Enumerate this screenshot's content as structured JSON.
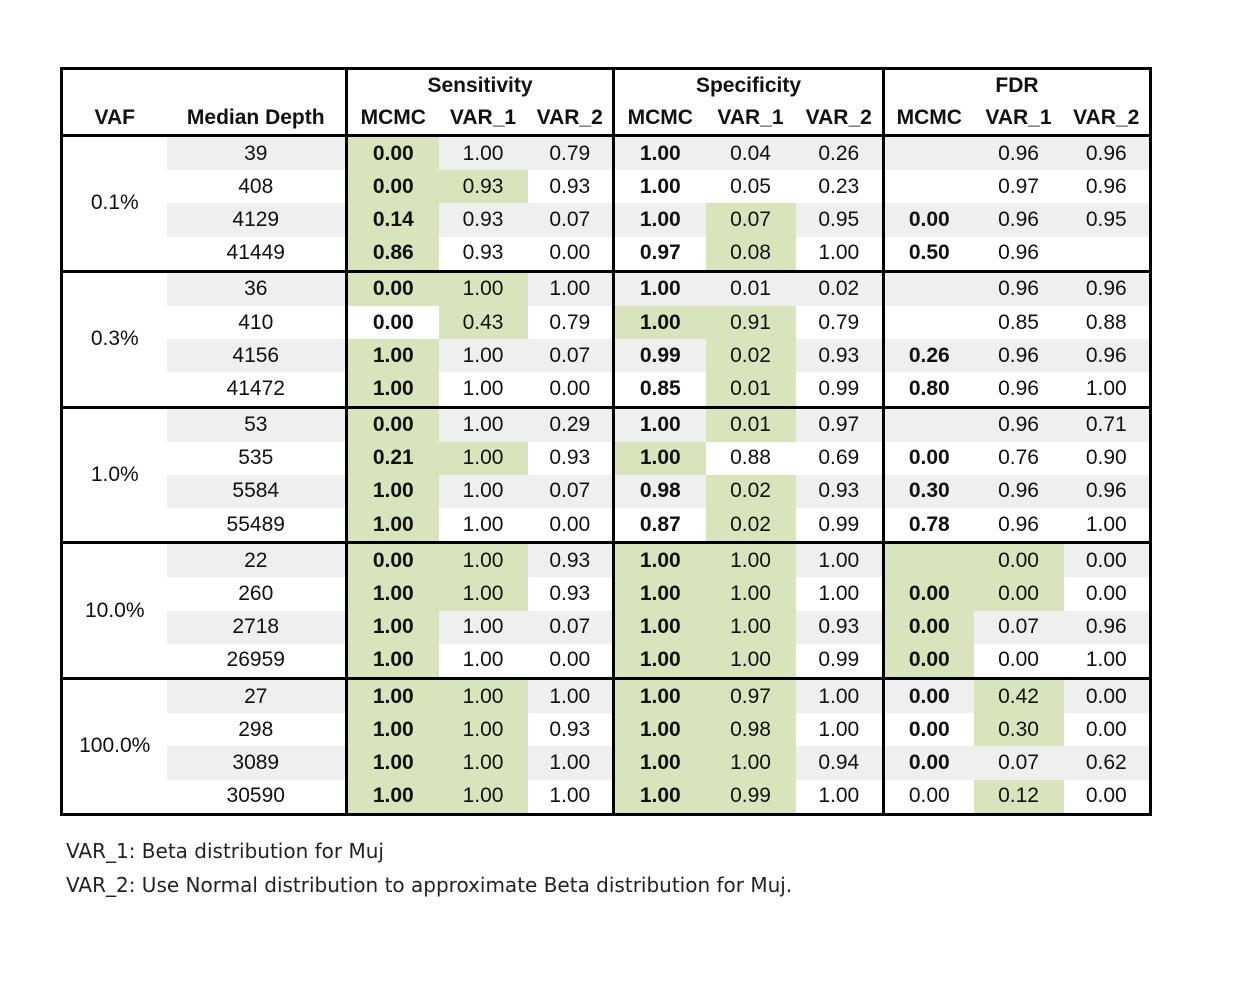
{
  "table": {
    "group_headers": [
      "Sensitivity",
      "Specificity",
      "FDR"
    ],
    "column_headers": [
      "VAF",
      "Median Depth",
      "MCMC",
      "VAR_1",
      "VAR_2",
      "MCMC",
      "VAR_1",
      "VAR_2",
      "MCMC",
      "VAR_1",
      "VAR_2"
    ],
    "groups": [
      {
        "vaf": "0.1%",
        "rows": [
          {
            "depth": "39",
            "values": [
              "0.00",
              "1.00",
              "0.79",
              "1.00",
              "0.04",
              "0.26",
              "",
              "0.96",
              "0.96"
            ],
            "green": [
              1,
              0,
              0,
              0,
              0,
              0,
              0,
              0,
              0
            ]
          },
          {
            "depth": "408",
            "values": [
              "0.00",
              "0.93",
              "0.93",
              "1.00",
              "0.05",
              "0.23",
              "",
              "0.97",
              "0.96"
            ],
            "green": [
              1,
              1,
              0,
              0,
              0,
              0,
              0,
              0,
              0
            ]
          },
          {
            "depth": "4129",
            "values": [
              "0.14",
              "0.93",
              "0.07",
              "1.00",
              "0.07",
              "0.95",
              "0.00",
              "0.96",
              "0.95"
            ],
            "green": [
              1,
              0,
              0,
              0,
              1,
              0,
              0,
              0,
              0
            ]
          },
          {
            "depth": "41449",
            "values": [
              "0.86",
              "0.93",
              "0.00",
              "0.97",
              "0.08",
              "1.00",
              "0.50",
              "0.96",
              ""
            ],
            "green": [
              1,
              0,
              0,
              0,
              1,
              0,
              0,
              0,
              0
            ]
          }
        ]
      },
      {
        "vaf": "0.3%",
        "rows": [
          {
            "depth": "36",
            "values": [
              "0.00",
              "1.00",
              "1.00",
              "1.00",
              "0.01",
              "0.02",
              "",
              "0.96",
              "0.96"
            ],
            "green": [
              1,
              1,
              0,
              0,
              0,
              0,
              0,
              0,
              0
            ]
          },
          {
            "depth": "410",
            "values": [
              "0.00",
              "0.43",
              "0.79",
              "1.00",
              "0.91",
              "0.79",
              "",
              "0.85",
              "0.88"
            ],
            "green": [
              0,
              1,
              0,
              1,
              1,
              0,
              0,
              0,
              0
            ]
          },
          {
            "depth": "4156",
            "values": [
              "1.00",
              "1.00",
              "0.07",
              "0.99",
              "0.02",
              "0.93",
              "0.26",
              "0.96",
              "0.96"
            ],
            "green": [
              1,
              0,
              0,
              0,
              1,
              0,
              0,
              0,
              0
            ]
          },
          {
            "depth": "41472",
            "values": [
              "1.00",
              "1.00",
              "0.00",
              "0.85",
              "0.01",
              "0.99",
              "0.80",
              "0.96",
              "1.00"
            ],
            "green": [
              1,
              0,
              0,
              0,
              1,
              0,
              0,
              0,
              0
            ]
          }
        ]
      },
      {
        "vaf": "1.0%",
        "rows": [
          {
            "depth": "53",
            "values": [
              "0.00",
              "1.00",
              "0.29",
              "1.00",
              "0.01",
              "0.97",
              "",
              "0.96",
              "0.71"
            ],
            "green": [
              1,
              0,
              0,
              0,
              1,
              0,
              0,
              0,
              0
            ]
          },
          {
            "depth": "535",
            "values": [
              "0.21",
              "1.00",
              "0.93",
              "1.00",
              "0.88",
              "0.69",
              "0.00",
              "0.76",
              "0.90"
            ],
            "green": [
              1,
              1,
              0,
              1,
              0,
              0,
              0,
              0,
              0
            ]
          },
          {
            "depth": "5584",
            "values": [
              "1.00",
              "1.00",
              "0.07",
              "0.98",
              "0.02",
              "0.93",
              "0.30",
              "0.96",
              "0.96"
            ],
            "green": [
              1,
              0,
              0,
              0,
              1,
              0,
              0,
              0,
              0
            ]
          },
          {
            "depth": "55489",
            "values": [
              "1.00",
              "1.00",
              "0.00",
              "0.87",
              "0.02",
              "0.99",
              "0.78",
              "0.96",
              "1.00"
            ],
            "green": [
              1,
              0,
              0,
              0,
              1,
              0,
              0,
              0,
              0
            ]
          }
        ]
      },
      {
        "vaf": "10.0%",
        "rows": [
          {
            "depth": "22",
            "values": [
              "0.00",
              "1.00",
              "0.93",
              "1.00",
              "1.00",
              "1.00",
              "",
              "0.00",
              "0.00"
            ],
            "green": [
              1,
              1,
              0,
              1,
              1,
              0,
              1,
              1,
              0
            ]
          },
          {
            "depth": "260",
            "values": [
              "1.00",
              "1.00",
              "0.93",
              "1.00",
              "1.00",
              "1.00",
              "0.00",
              "0.00",
              "0.00"
            ],
            "green": [
              1,
              1,
              0,
              1,
              1,
              0,
              1,
              1,
              0
            ]
          },
          {
            "depth": "2718",
            "values": [
              "1.00",
              "1.00",
              "0.07",
              "1.00",
              "1.00",
              "0.93",
              "0.00",
              "0.07",
              "0.96"
            ],
            "green": [
              1,
              0,
              0,
              1,
              1,
              0,
              1,
              0,
              0
            ]
          },
          {
            "depth": "26959",
            "values": [
              "1.00",
              "1.00",
              "0.00",
              "1.00",
              "1.00",
              "0.99",
              "0.00",
              "0.00",
              "1.00"
            ],
            "green": [
              1,
              0,
              0,
              1,
              1,
              0,
              1,
              0,
              0
            ]
          }
        ]
      },
      {
        "vaf": "100.0%",
        "rows": [
          {
            "depth": "27",
            "values": [
              "1.00",
              "1.00",
              "1.00",
              "1.00",
              "0.97",
              "1.00",
              "0.00",
              "0.42",
              "0.00"
            ],
            "green": [
              1,
              1,
              0,
              1,
              1,
              0,
              0,
              1,
              0
            ]
          },
          {
            "depth": "298",
            "values": [
              "1.00",
              "1.00",
              "0.93",
              "1.00",
              "0.98",
              "1.00",
              "0.00",
              "0.30",
              "0.00"
            ],
            "green": [
              1,
              1,
              0,
              1,
              1,
              0,
              0,
              1,
              0
            ]
          },
          {
            "depth": "3089",
            "values": [
              "1.00",
              "1.00",
              "1.00",
              "1.00",
              "1.00",
              "0.94",
              "0.00",
              "0.07",
              "0.62"
            ],
            "green": [
              1,
              1,
              0,
              1,
              1,
              0,
              0,
              0,
              0
            ]
          },
          {
            "depth": "30590",
            "values": [
              "1.00",
              "1.00",
              "1.00",
              "1.00",
              "0.99",
              "1.00",
              "0.00",
              "0.12",
              "0.00"
            ],
            "green": [
              1,
              1,
              0,
              1,
              1,
              0,
              0,
              1,
              0
            ]
          }
        ]
      }
    ],
    "bold_cells": [
      [
        [
          1,
          0,
          0,
          1,
          0,
          0,
          0,
          0,
          0
        ],
        [
          1,
          0,
          0,
          1,
          0,
          0,
          0,
          0,
          0
        ],
        [
          1,
          0,
          0,
          1,
          0,
          0,
          1,
          0,
          0
        ],
        [
          1,
          0,
          0,
          1,
          0,
          0,
          1,
          0,
          0
        ]
      ],
      [
        [
          1,
          0,
          0,
          1,
          0,
          0,
          0,
          0,
          0
        ],
        [
          1,
          0,
          0,
          1,
          0,
          0,
          0,
          0,
          0
        ],
        [
          1,
          0,
          0,
          1,
          0,
          0,
          1,
          0,
          0
        ],
        [
          1,
          0,
          0,
          1,
          0,
          0,
          1,
          0,
          0
        ]
      ],
      [
        [
          1,
          0,
          0,
          1,
          0,
          0,
          0,
          0,
          0
        ],
        [
          1,
          0,
          0,
          1,
          0,
          0,
          1,
          0,
          0
        ],
        [
          1,
          0,
          0,
          1,
          0,
          0,
          1,
          0,
          0
        ],
        [
          1,
          0,
          0,
          1,
          0,
          0,
          1,
          0,
          0
        ]
      ],
      [
        [
          1,
          0,
          0,
          1,
          0,
          0,
          0,
          0,
          0
        ],
        [
          1,
          0,
          0,
          1,
          0,
          0,
          1,
          0,
          0
        ],
        [
          1,
          0,
          0,
          1,
          0,
          0,
          1,
          0,
          0
        ],
        [
          1,
          0,
          0,
          1,
          0,
          0,
          1,
          0,
          0
        ]
      ],
      [
        [
          1,
          0,
          0,
          1,
          0,
          0,
          1,
          0,
          0
        ],
        [
          1,
          0,
          0,
          1,
          0,
          0,
          1,
          0,
          0
        ],
        [
          1,
          0,
          0,
          1,
          0,
          0,
          1,
          0,
          0
        ],
        [
          1,
          0,
          0,
          1,
          0,
          0,
          0,
          0,
          0
        ]
      ]
    ],
    "colors": {
      "green": "#d8e4bc",
      "shade": "#efefef",
      "border": "#000000"
    }
  },
  "notes": [
    "VAR_1: Beta distribution for Muj",
    "VAR_2: Use Normal distribution to approximate Beta distribution for Muj."
  ]
}
